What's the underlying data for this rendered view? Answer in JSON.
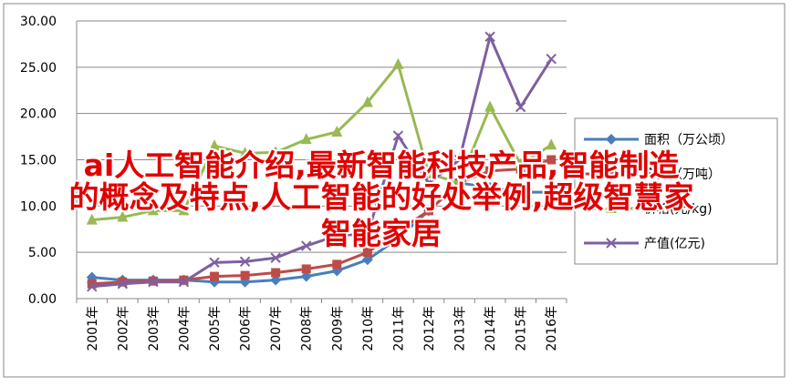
{
  "chart_data": {
    "type": "line",
    "overlay_lines": [
      "ai人工智能介绍,最新智能科技产品,智能制造",
      "的概念及特点,人工智能的好处举例,超级智慧家",
      "智能家居"
    ],
    "categories": [
      "2001年",
      "2002年",
      "2003年",
      "2004年",
      "2005年",
      "2006年",
      "2007年",
      "2008年",
      "2009年",
      "2010年",
      "2011年",
      "2012年",
      "2013年",
      "2014年",
      "2015年",
      "2016年"
    ],
    "series": [
      {
        "name": "面积（万公顷）",
        "color": "#4a7ebb",
        "marker": "diamond",
        "values": [
          2.3,
          2.0,
          2.0,
          2.0,
          1.8,
          1.8,
          2.0,
          2.4,
          3.0,
          4.2,
          6.5,
          9.5,
          12.5,
          12.0,
          11.5,
          11.5
        ]
      },
      {
        "name": "产量（万吨）",
        "color": "#be4b48",
        "marker": "square",
        "values": [
          1.6,
          1.8,
          1.9,
          2.0,
          2.4,
          2.5,
          2.8,
          3.2,
          3.7,
          5.0,
          7.3,
          9.5,
          12.5,
          13.8,
          14.0,
          15.0
        ]
      },
      {
        "name": "价格(元/kg)",
        "color": "#98b954",
        "marker": "triangle",
        "values": [
          8.5,
          8.8,
          9.5,
          9.5,
          16.5,
          15.7,
          15.8,
          17.2,
          18.0,
          21.2,
          25.3,
          13.5,
          12.5,
          20.7,
          14.5,
          16.6
        ]
      },
      {
        "name": "产值(亿元)",
        "color": "#7d60a0",
        "marker": "x",
        "values": [
          1.3,
          1.6,
          1.8,
          1.8,
          3.9,
          4.0,
          4.4,
          5.7,
          6.8,
          7.0,
          17.6,
          12.5,
          15.0,
          28.3,
          20.7,
          25.9
        ]
      }
    ],
    "ylim": [
      0,
      30
    ],
    "yticks": [
      {
        "value": 0,
        "label": "0.00"
      },
      {
        "value": 5,
        "label": "5.00"
      },
      {
        "value": 10,
        "label": "10.00"
      },
      {
        "value": 15,
        "label": "15.00"
      },
      {
        "value": 20,
        "label": "20.00"
      },
      {
        "value": 25,
        "label": "25.00"
      },
      {
        "value": 30,
        "label": "30.00"
      }
    ],
    "grid": true
  }
}
